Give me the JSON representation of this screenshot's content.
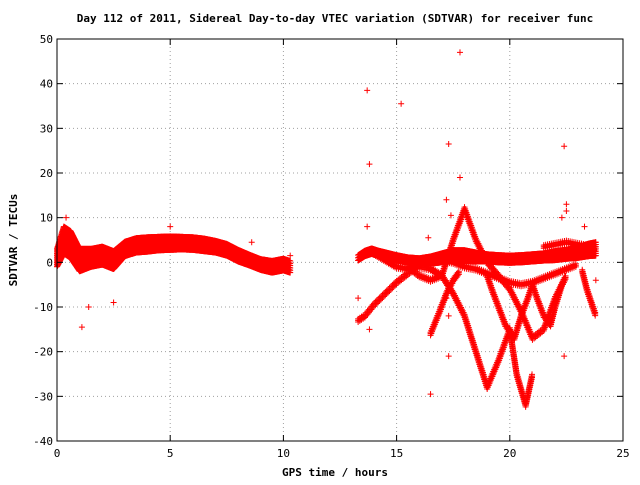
{
  "chart_data": {
    "type": "scatter",
    "title": "Day 112 of 2011, Sidereal Day-to-day VTEC variation (SDTVAR) for receiver func",
    "xlabel": "GPS time / hours",
    "ylabel": "SDTVAR / TECUs",
    "xlim": [
      0,
      25
    ],
    "ylim": [
      -40,
      50
    ],
    "x_ticks": [
      0,
      5,
      10,
      15,
      20,
      25
    ],
    "y_ticks": [
      -40,
      -30,
      -20,
      -10,
      0,
      10,
      20,
      30,
      40,
      50
    ],
    "x_tick_labels": [
      "0",
      "5",
      "10",
      "15",
      "20",
      "25"
    ],
    "y_tick_labels": [
      "-40",
      "-30",
      "-20",
      "-10",
      "0",
      "10",
      "20",
      "30",
      "40",
      "50"
    ],
    "grid": true,
    "marker": "+",
    "series_color": "#ff0000",
    "series": [
      {
        "bands": [
          {
            "x": [
              0.0,
              0.3,
              0.6,
              1.0,
              1.5,
              2.0,
              2.5,
              3.0,
              3.5,
              4.0,
              4.5,
              5.0,
              5.5,
              6.0,
              6.5,
              7.0,
              7.5,
              8.0,
              8.5,
              9.0,
              9.5,
              10.0,
              10.3
            ],
            "center": [
              1.0,
              5.0,
              4.0,
              0.5,
              1.0,
              1.5,
              0.5,
              3.0,
              3.8,
              4.0,
              4.2,
              4.3,
              4.3,
              4.2,
              3.9,
              3.5,
              2.8,
              1.5,
              0.5,
              -0.5,
              -1.0,
              -0.5,
              -1.0
            ],
            "spread": [
              2.0,
              3.0,
              3.0,
              2.5,
              2.0,
              2.0,
              2.0,
              1.6,
              1.6,
              1.6,
              1.5,
              1.5,
              1.4,
              1.4,
              1.4,
              1.3,
              1.3,
              1.3,
              1.2,
              1.2,
              1.3,
              1.3,
              1.3
            ]
          },
          {
            "x": [
              13.3,
              13.6,
              13.9,
              14.2,
              14.6,
              15.0,
              15.5,
              16.0,
              16.5,
              17.0,
              17.5,
              18.0,
              18.5,
              19.0,
              19.5,
              20.0,
              20.5,
              21.0,
              21.5,
              22.0,
              22.5,
              23.0,
              23.5,
              23.8
            ],
            "center": [
              1.0,
              2.0,
              2.5,
              2.0,
              1.5,
              1.0,
              0.5,
              0.3,
              0.5,
              1.0,
              1.5,
              1.5,
              1.2,
              1.0,
              0.8,
              0.7,
              0.8,
              1.0,
              1.2,
              1.5,
              1.8,
              2.2,
              2.8,
              3.0
            ],
            "spread": [
              0.6,
              0.6,
              0.6,
              0.6,
              0.6,
              0.6,
              0.6,
              0.6,
              0.8,
              1.0,
              1.2,
              1.2,
              1.0,
              0.8,
              0.8,
              0.8,
              0.8,
              0.8,
              0.8,
              1.0,
              1.0,
              1.2,
              1.4,
              1.5
            ]
          }
        ],
        "tracks": [
          {
            "x": [
              13.3,
              13.6,
              14.0,
              14.5,
              15.0,
              15.5,
              16.0,
              16.5,
              17.0,
              17.5,
              18.0,
              18.5,
              19.0,
              19.5,
              20.0,
              20.5,
              21.0,
              21.5,
              22.0,
              22.5,
              23.0
            ],
            "y": [
              -13.0,
              -12.0,
              -9.5,
              -7.0,
              -4.5,
              -2.5,
              -0.5,
              0.5,
              0.5,
              0.0,
              -1.0,
              -1.5,
              -2.5,
              -3.5,
              -4.5,
              -5.0,
              -4.5,
              -3.5,
              -2.5,
              -1.5,
              -0.5
            ]
          },
          {
            "x": [
              14.0,
              14.5,
              15.0,
              15.5,
              16.0,
              16.5,
              17.0,
              17.5,
              18.0,
              18.5,
              19.0,
              19.5,
              20.0,
              20.3,
              20.7,
              21.0
            ],
            "y": [
              2.0,
              0.5,
              -1.0,
              -1.5,
              -1.0,
              -1.5,
              -3.0,
              -7.0,
              -12.0,
              -20.0,
              -28.0,
              -22.0,
              -15.0,
              -25.0,
              -32.0,
              -25.0
            ]
          },
          {
            "x": [
              15.5,
              16.0,
              16.5,
              17.0,
              17.5,
              18.0,
              18.5,
              19.0,
              19.5,
              20.0,
              20.5,
              21.0,
              21.5,
              22.0,
              22.5
            ],
            "y": [
              -1.0,
              -3.0,
              -4.0,
              -3.0,
              5.0,
              12.0,
              5.0,
              0.0,
              -3.0,
              -6.0,
              -11.0,
              -17.0,
              -15.0,
              -8.0,
              -3.0
            ]
          },
          {
            "x": [
              16.5,
              16.9,
              17.2,
              17.5,
              17.8
            ],
            "y": [
              -16.0,
              -11.0,
              -7.0,
              -4.0,
              -2.0
            ]
          },
          {
            "x": [
              19.0,
              19.2,
              19.5,
              19.8,
              20.2,
              20.5,
              20.8,
              21.0,
              21.2,
              21.5,
              21.8,
              22.0,
              22.3,
              22.5
            ],
            "y": [
              -3.0,
              -6.0,
              -10.0,
              -14.0,
              -17.0,
              -12.0,
              -8.0,
              -5.0,
              -8.0,
              -12.0,
              -14.0,
              -10.0,
              -5.0,
              -3.0
            ]
          },
          {
            "x": [
              23.2,
              23.4,
              23.6,
              23.8
            ],
            "y": [
              -2.0,
              -6.0,
              -9.0,
              -12.0
            ]
          },
          {
            "x": [
              21.5,
              22.0,
              22.5,
              23.0,
              23.5,
              23.8
            ],
            "y": [
              3.5,
              4.0,
              4.5,
              4.0,
              3.5,
              3.0
            ]
          }
        ],
        "outliers": [
          [
            17.8,
            47.0
          ],
          [
            13.7,
            38.5
          ],
          [
            15.2,
            35.5
          ],
          [
            17.3,
            26.5
          ],
          [
            22.4,
            26.0
          ],
          [
            13.8,
            22.0
          ],
          [
            17.8,
            19.0
          ],
          [
            13.7,
            8.0
          ],
          [
            0.4,
            10.0
          ],
          [
            5.0,
            8.0
          ],
          [
            8.6,
            4.5
          ],
          [
            1.1,
            -14.5
          ],
          [
            1.4,
            -10.0
          ],
          [
            2.5,
            -9.0
          ],
          [
            13.3,
            -8.0
          ],
          [
            13.8,
            -15.0
          ],
          [
            16.5,
            -29.5
          ],
          [
            17.3,
            -21.0
          ],
          [
            22.4,
            -21.0
          ],
          [
            17.3,
            -12.0
          ],
          [
            17.2,
            -8.0
          ],
          [
            22.5,
            13.0
          ],
          [
            22.5,
            11.5
          ],
          [
            22.3,
            10.0
          ],
          [
            23.3,
            8.0
          ],
          [
            17.2,
            14.0
          ],
          [
            17.4,
            10.5
          ],
          [
            16.4,
            5.5
          ],
          [
            23.8,
            -4.0
          ],
          [
            10.3,
            1.5
          ]
        ]
      }
    ]
  }
}
